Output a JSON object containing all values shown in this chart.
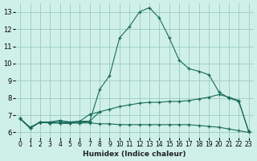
{
  "xlabel": "Humidex (Indice chaleur)",
  "background_color": "#cff0e8",
  "grid_color": "#a0cfc4",
  "line_color": "#1a6b5a",
  "xlim": [
    -0.5,
    23.5
  ],
  "ylim": [
    5.7,
    13.5
  ],
  "xticks": [
    0,
    1,
    2,
    3,
    4,
    5,
    6,
    7,
    8,
    9,
    10,
    11,
    12,
    13,
    14,
    15,
    16,
    17,
    18,
    19,
    20,
    21,
    22,
    23
  ],
  "yticks": [
    6,
    7,
    8,
    9,
    10,
    11,
    12,
    13
  ],
  "series_peak_x": [
    0,
    1,
    2,
    3,
    4,
    5,
    6,
    7,
    8,
    9,
    10,
    11,
    12,
    13,
    14,
    15,
    16,
    17,
    18,
    19,
    20,
    21,
    22,
    23
  ],
  "series_peak_y": [
    6.8,
    6.3,
    6.6,
    6.6,
    6.7,
    6.6,
    6.65,
    6.65,
    8.5,
    9.3,
    11.5,
    12.15,
    13.0,
    13.25,
    12.65,
    11.5,
    10.2,
    9.7,
    9.55,
    9.35,
    8.35,
    8.0,
    7.8,
    6.05
  ],
  "series_bottom_x": [
    0,
    1,
    2,
    3,
    4,
    5,
    6,
    7,
    8,
    9,
    10,
    11,
    12,
    13,
    14,
    15,
    16,
    17,
    18,
    19,
    20,
    21,
    22,
    23
  ],
  "series_bottom_y": [
    6.8,
    6.25,
    6.6,
    6.55,
    6.55,
    6.55,
    6.55,
    6.55,
    6.5,
    6.5,
    6.45,
    6.45,
    6.45,
    6.45,
    6.45,
    6.45,
    6.45,
    6.45,
    6.4,
    6.35,
    6.3,
    6.2,
    6.1,
    6.0
  ],
  "series_mid_x": [
    0,
    1,
    2,
    3,
    4,
    5,
    6,
    7,
    8,
    9,
    10,
    11,
    12,
    13,
    14,
    15,
    16,
    17,
    18,
    19,
    20,
    21,
    22,
    23
  ],
  "series_mid_y": [
    6.8,
    6.25,
    6.6,
    6.6,
    6.65,
    6.6,
    6.65,
    7.05,
    7.2,
    7.35,
    7.5,
    7.6,
    7.7,
    7.75,
    7.75,
    7.8,
    7.8,
    7.85,
    7.95,
    8.05,
    8.2,
    8.05,
    7.85,
    6.05
  ],
  "series_zigzag_x": [
    0,
    1,
    2,
    3,
    2,
    3,
    4,
    5,
    4,
    5,
    6,
    7,
    6,
    7,
    8
  ],
  "series_zigzag_y": [
    6.8,
    6.25,
    6.6,
    6.55,
    6.6,
    6.55,
    6.55,
    6.55,
    6.55,
    6.55,
    6.55,
    6.65,
    6.65,
    6.65,
    7.2
  ]
}
